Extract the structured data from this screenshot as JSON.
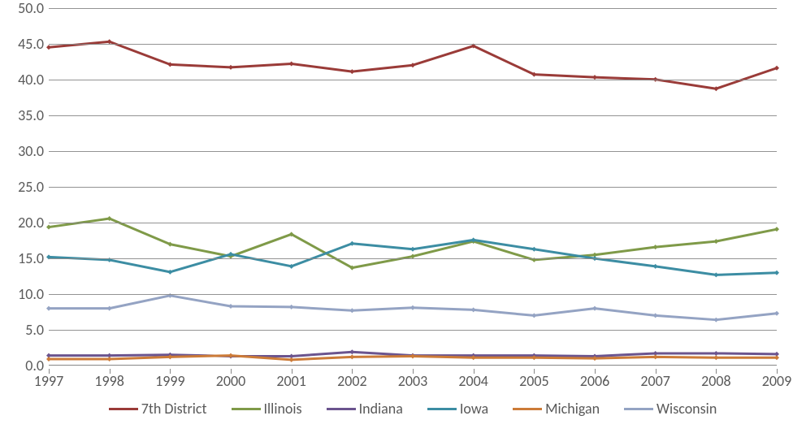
{
  "chart": {
    "type": "line",
    "background_color": "#ffffff",
    "grid_color": "#878787",
    "axis_label_color": "#595959",
    "axis_fontsize": 18,
    "xlim": [
      1997,
      2009
    ],
    "ylim": [
      0,
      50
    ],
    "ytick_step": 5,
    "yticks": [
      "0.0",
      "5.0",
      "10.0",
      "15.0",
      "20.0",
      "25.0",
      "30.0",
      "35.0",
      "40.0",
      "45.0",
      "50.0"
    ],
    "xticks": [
      "1997",
      "1998",
      "1999",
      "2000",
      "2001",
      "2002",
      "2003",
      "2004",
      "2005",
      "2006",
      "2007",
      "2008",
      "2009"
    ],
    "line_width": 3,
    "marker_style": "diamond",
    "marker_size": 6,
    "series": [
      {
        "name": "7th District",
        "color": "#9a3b38",
        "values": [
          44.5,
          45.3,
          42.1,
          41.7,
          42.2,
          41.1,
          42.0,
          44.7,
          40.7,
          40.3,
          40.0,
          38.7,
          41.6
        ]
      },
      {
        "name": "Illinois",
        "color": "#7f9a48",
        "values": [
          19.3,
          20.5,
          16.9,
          15.2,
          18.3,
          13.6,
          15.2,
          17.3,
          14.7,
          15.4,
          16.5,
          17.3,
          19.0
        ]
      },
      {
        "name": "Indiana",
        "color": "#6b548e",
        "values": [
          1.3,
          1.3,
          1.4,
          1.2,
          1.2,
          1.8,
          1.3,
          1.3,
          1.3,
          1.2,
          1.6,
          1.6,
          1.5
        ]
      },
      {
        "name": "Iowa",
        "color": "#3c8da3",
        "values": [
          15.1,
          14.7,
          13.0,
          15.5,
          13.8,
          17.0,
          16.2,
          17.5,
          16.2,
          14.9,
          13.8,
          12.6,
          12.9
        ]
      },
      {
        "name": "Michigan",
        "color": "#cc7b38",
        "values": [
          0.8,
          0.8,
          1.1,
          1.3,
          0.7,
          1.1,
          1.2,
          1.0,
          1.0,
          0.9,
          1.1,
          1.0,
          1.0
        ]
      },
      {
        "name": "Wisconsin",
        "color": "#94a3c3",
        "values": [
          7.9,
          7.9,
          9.7,
          8.2,
          8.1,
          7.6,
          8.0,
          7.7,
          6.9,
          7.9,
          6.9,
          6.3,
          7.2
        ]
      }
    ]
  }
}
